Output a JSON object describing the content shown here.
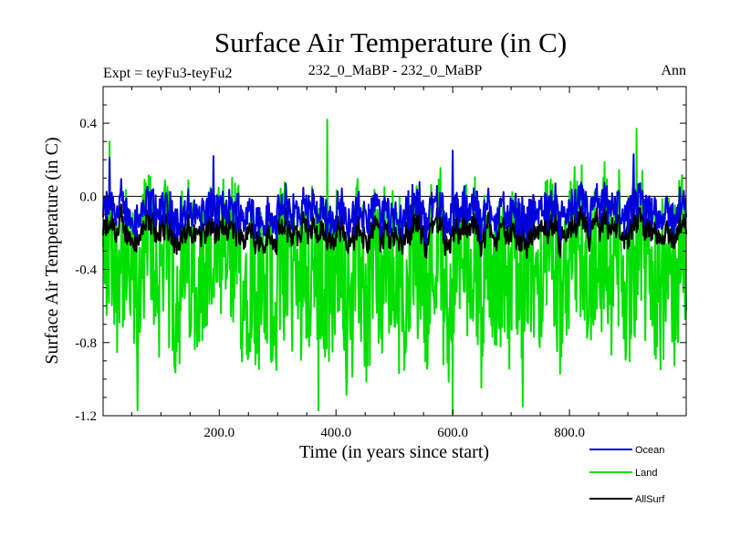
{
  "chart_data": {
    "type": "line",
    "title": "Surface Air Temperature (in C)",
    "subtitle_left": "Expt = teyFu3-teyFu2",
    "subtitle_center": "232_0_MaBP - 232_0_MaBP",
    "subtitle_right": "Ann",
    "xlabel": "Time (in years since start)",
    "ylabel": "Surface Air Temperature (in C)",
    "xlim": [
      1,
      1000
    ],
    "ylim": [
      -1.2,
      0.6
    ],
    "xticks": [
      200,
      400,
      600,
      800
    ],
    "xtick_labels": [
      "200.0",
      "400.0",
      "600.0",
      "800.0"
    ],
    "yticks": [
      -1.2,
      -0.8,
      -0.4,
      0.0,
      0.4
    ],
    "ytick_labels": [
      "-1.2",
      "-0.8",
      "-0.4",
      "0.0",
      "0.4"
    ],
    "zero_line": 0.0,
    "legend_position": "bottom-right",
    "series": [
      {
        "name": "Ocean",
        "color": "#0000dd",
        "approx_mean": -0.09,
        "approx_range": [
          -0.3,
          0.25
        ],
        "approx_peaks": [
          [
            12,
            0.21
          ],
          [
            190,
            0.22
          ],
          [
            600,
            0.25
          ],
          [
            910,
            0.23
          ]
        ]
      },
      {
        "name": "Land",
        "color": "#00e000",
        "approx_mean": -0.42,
        "approx_range": [
          -1.2,
          0.42
        ],
        "approx_peaks": [
          [
            12,
            0.3
          ],
          [
            385,
            0.42
          ],
          [
            915,
            0.37
          ]
        ],
        "approx_troughs": [
          [
            60,
            -1.17
          ],
          [
            370,
            -1.17
          ],
          [
            600,
            -1.19
          ],
          [
            720,
            -1.15
          ]
        ]
      },
      {
        "name": "AllSurf",
        "color": "#000000",
        "approx_mean": -0.2,
        "approx_range": [
          -0.5,
          0.02
        ]
      }
    ]
  }
}
